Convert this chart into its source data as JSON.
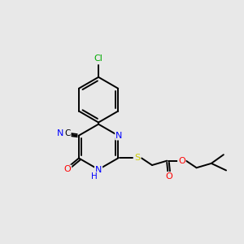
{
  "bg_color": "#e8e8e8",
  "atom_colors": {
    "C": "#000000",
    "N": "#0000ff",
    "O": "#ff0000",
    "S": "#cccc00",
    "Cl": "#00aa00",
    "H": "#0000ff"
  },
  "bond_color": "#000000",
  "figsize": [
    3.0,
    3.0
  ],
  "dpi": 100
}
